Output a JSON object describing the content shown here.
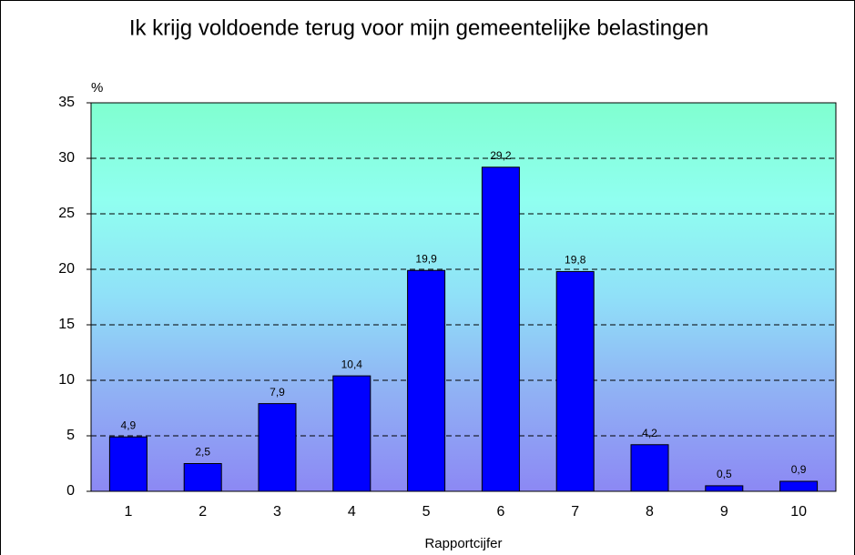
{
  "chart_data": {
    "type": "bar",
    "title": "Ik krijg voldoende terug voor mijn gemeentelijke belastingen",
    "ylabel": "%",
    "xlabel": "Rapportcijfer",
    "categories": [
      "1",
      "2",
      "3",
      "4",
      "5",
      "6",
      "7",
      "8",
      "9",
      "10"
    ],
    "values": [
      4.9,
      2.5,
      7.9,
      10.4,
      19.9,
      29.2,
      19.8,
      4.2,
      0.5,
      0.9
    ],
    "value_labels": [
      "4,9",
      "2,5",
      "7,9",
      "10,4",
      "19,9",
      "29,2",
      "19,8",
      "4,2",
      "0,5",
      "0,9"
    ],
    "color": "#0000ff",
    "ylim": [
      0,
      35
    ],
    "yticks": [
      0,
      5,
      10,
      15,
      20,
      25,
      30,
      35
    ],
    "grid": true
  }
}
